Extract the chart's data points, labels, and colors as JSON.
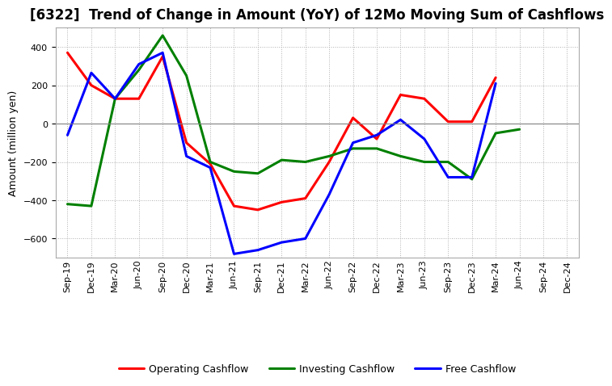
{
  "title": "[6322]  Trend of Change in Amount (YoY) of 12Mo Moving Sum of Cashflows",
  "ylabel": "Amount (million yen)",
  "x_labels": [
    "Sep-19",
    "Dec-19",
    "Mar-20",
    "Jun-20",
    "Sep-20",
    "Dec-20",
    "Mar-21",
    "Jun-21",
    "Sep-21",
    "Dec-21",
    "Mar-22",
    "Jun-22",
    "Sep-22",
    "Dec-22",
    "Mar-23",
    "Jun-23",
    "Sep-23",
    "Dec-23",
    "Mar-24",
    "Jun-24",
    "Sep-24",
    "Dec-24"
  ],
  "operating_cashflow": [
    370,
    200,
    130,
    130,
    350,
    -100,
    -210,
    -430,
    -450,
    -410,
    -390,
    -200,
    30,
    -80,
    150,
    130,
    10,
    10,
    240,
    null,
    null,
    null
  ],
  "investing_cashflow": [
    -420,
    -430,
    130,
    280,
    460,
    250,
    -200,
    -250,
    -260,
    -190,
    -200,
    -170,
    -130,
    -130,
    -170,
    -200,
    -200,
    -290,
    -50,
    -30,
    null,
    null
  ],
  "free_cashflow": [
    -60,
    265,
    130,
    310,
    370,
    -170,
    -230,
    -680,
    -660,
    -620,
    -600,
    -370,
    -100,
    -60,
    20,
    -80,
    -280,
    -280,
    210,
    null,
    null,
    null
  ],
  "op_color": "#ff0000",
  "inv_color": "#008000",
  "free_color": "#0000ff",
  "bg_color": "#ffffff",
  "plot_bg_color": "#ffffff",
  "grid_color": "#b0b0b0",
  "ylim": [
    -700,
    500
  ],
  "yticks": [
    -600,
    -400,
    -200,
    0,
    200,
    400
  ],
  "title_fontsize": 12,
  "axis_fontsize": 9,
  "tick_fontsize": 8,
  "legend_fontsize": 9,
  "line_width": 2.2
}
